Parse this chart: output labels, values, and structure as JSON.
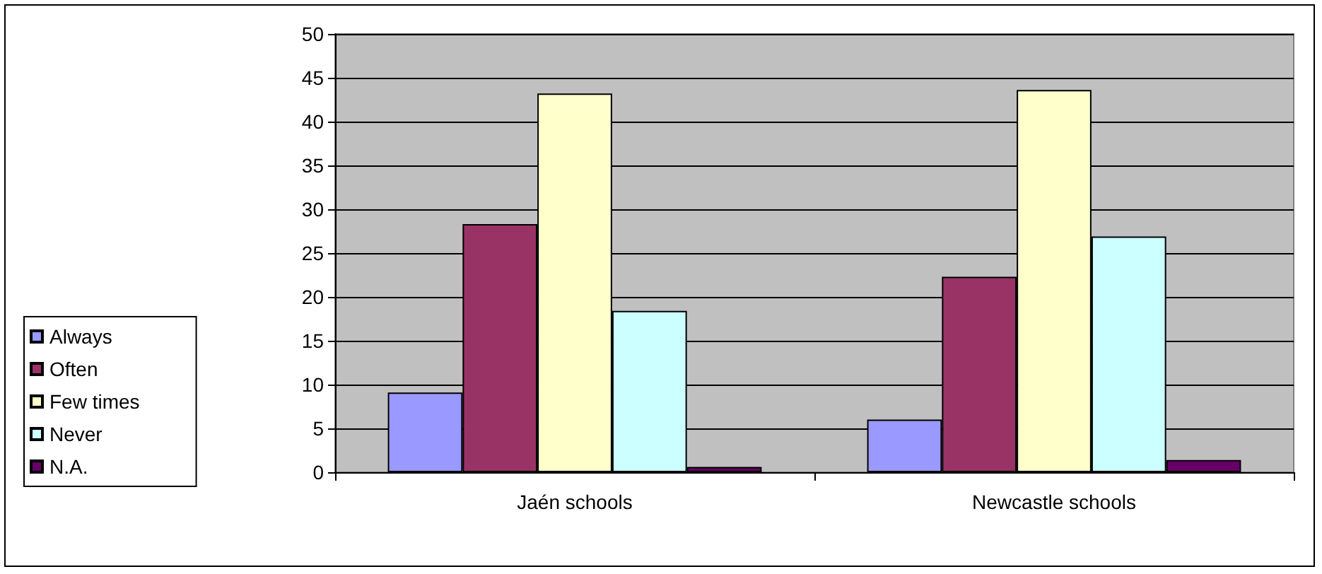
{
  "chart_data": {
    "type": "bar",
    "categories": [
      "Jaén schools",
      "Newcastle schools"
    ],
    "series": [
      {
        "name": "Always",
        "color": "#9999ff",
        "values": [
          9.1,
          6.0
        ]
      },
      {
        "name": "Often",
        "color": "#993366",
        "values": [
          28.3,
          22.3
        ]
      },
      {
        "name": "Few times",
        "color": "#ffffcc",
        "values": [
          43.2,
          43.6
        ]
      },
      {
        "name": "Never",
        "color": "#ccffff",
        "values": [
          18.4,
          26.9
        ]
      },
      {
        "name": "N.A.",
        "color": "#660066",
        "values": [
          0.6,
          1.4
        ]
      }
    ],
    "ylim": [
      0,
      50
    ],
    "yticks": [
      0,
      5,
      10,
      15,
      20,
      25,
      30,
      35,
      40,
      45,
      50
    ],
    "grid": "y",
    "legend": "left"
  }
}
